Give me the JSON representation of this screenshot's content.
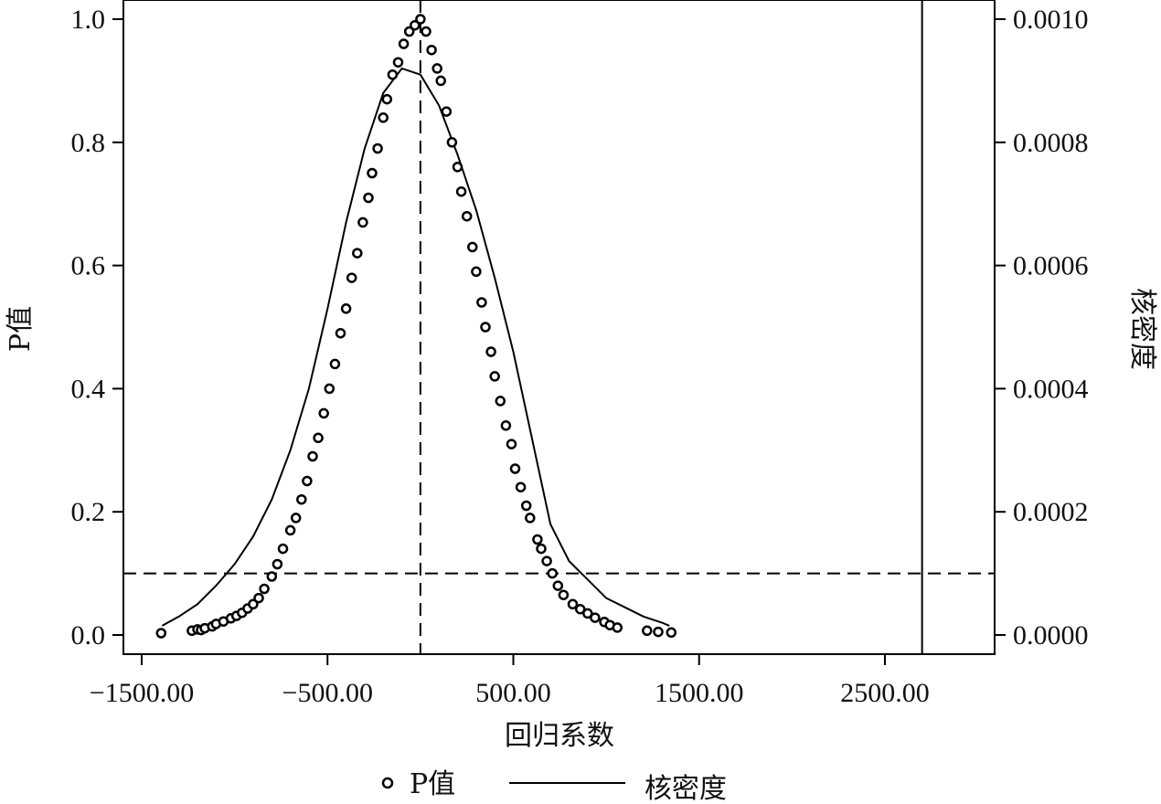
{
  "chart_data": {
    "type": "scatter",
    "xlabel": "回归系数",
    "ylabel_left": "P值",
    "ylabel_right": "核密度",
    "xlim": [
      -1600,
      3000
    ],
    "ylim_left": [
      0,
      1.0
    ],
    "ylim_right": [
      0,
      0.001
    ],
    "x_ticks": [
      -1500,
      -500,
      500,
      1500,
      2500
    ],
    "x_tick_labels": [
      "−1500.00",
      "−500.00",
      "500.00",
      "1500.00",
      "2500.00"
    ],
    "y_left_ticks": [
      0.0,
      0.2,
      0.4,
      0.6,
      0.8,
      1.0
    ],
    "y_left_tick_labels": [
      "0.0",
      "0.2",
      "0.4",
      "0.6",
      "0.8",
      "1.0"
    ],
    "y_right_ticks": [
      0,
      0.0002,
      0.0004,
      0.0006,
      0.0008,
      0.001
    ],
    "y_right_tick_labels": [
      "0.0000",
      "0.0002",
      "0.0004",
      "0.0006",
      "0.0008",
      "0.0010"
    ],
    "reference_lines": {
      "vertical_dashed_x": 0,
      "horizontal_dashed_y": 0.1,
      "vertical_solid_x": 2700
    },
    "grid": false,
    "legend_position": "bottom",
    "legend": {
      "pvalue_label": "P值",
      "density_label": "核密度"
    },
    "series": [
      {
        "name": "P值",
        "kind": "scatter",
        "points": [
          [
            -1395,
            0.003
          ],
          [
            -1230,
            0.007
          ],
          [
            -1200,
            0.009
          ],
          [
            -1180,
            0.008
          ],
          [
            -1160,
            0.011
          ],
          [
            -1120,
            0.014
          ],
          [
            -1100,
            0.018
          ],
          [
            -1060,
            0.022
          ],
          [
            -1020,
            0.027
          ],
          [
            -990,
            0.031
          ],
          [
            -960,
            0.036
          ],
          [
            -930,
            0.043
          ],
          [
            -900,
            0.05
          ],
          [
            -870,
            0.06
          ],
          [
            -840,
            0.075
          ],
          [
            -800,
            0.095
          ],
          [
            -770,
            0.115
          ],
          [
            -740,
            0.14
          ],
          [
            -700,
            0.17
          ],
          [
            -670,
            0.19
          ],
          [
            -640,
            0.22
          ],
          [
            -610,
            0.25
          ],
          [
            -580,
            0.29
          ],
          [
            -550,
            0.32
          ],
          [
            -520,
            0.36
          ],
          [
            -490,
            0.4
          ],
          [
            -460,
            0.44
          ],
          [
            -430,
            0.49
          ],
          [
            -400,
            0.53
          ],
          [
            -370,
            0.58
          ],
          [
            -340,
            0.62
          ],
          [
            -310,
            0.67
          ],
          [
            -280,
            0.71
          ],
          [
            -260,
            0.75
          ],
          [
            -230,
            0.79
          ],
          [
            -200,
            0.84
          ],
          [
            -180,
            0.87
          ],
          [
            -150,
            0.91
          ],
          [
            -120,
            0.93
          ],
          [
            -90,
            0.96
          ],
          [
            -60,
            0.98
          ],
          [
            -30,
            0.99
          ],
          [
            0,
            1.0
          ],
          [
            30,
            0.98
          ],
          [
            60,
            0.95
          ],
          [
            90,
            0.92
          ],
          [
            110,
            0.9
          ],
          [
            140,
            0.85
          ],
          [
            170,
            0.8
          ],
          [
            200,
            0.76
          ],
          [
            220,
            0.72
          ],
          [
            250,
            0.68
          ],
          [
            280,
            0.63
          ],
          [
            300,
            0.59
          ],
          [
            330,
            0.54
          ],
          [
            350,
            0.5
          ],
          [
            380,
            0.46
          ],
          [
            400,
            0.42
          ],
          [
            430,
            0.38
          ],
          [
            460,
            0.34
          ],
          [
            490,
            0.31
          ],
          [
            510,
            0.27
          ],
          [
            540,
            0.24
          ],
          [
            570,
            0.21
          ],
          [
            590,
            0.19
          ],
          [
            630,
            0.155
          ],
          [
            650,
            0.14
          ],
          [
            680,
            0.12
          ],
          [
            710,
            0.1
          ],
          [
            740,
            0.08
          ],
          [
            770,
            0.065
          ],
          [
            820,
            0.05
          ],
          [
            860,
            0.042
          ],
          [
            900,
            0.035
          ],
          [
            940,
            0.028
          ],
          [
            990,
            0.021
          ],
          [
            1020,
            0.016
          ],
          [
            1060,
            0.012
          ],
          [
            1220,
            0.007
          ],
          [
            1280,
            0.005
          ],
          [
            1350,
            0.004
          ]
        ]
      },
      {
        "name": "核密度",
        "kind": "line",
        "points": [
          [
            -1390,
            1.5e-05
          ],
          [
            -1300,
            3e-05
          ],
          [
            -1200,
            5e-05
          ],
          [
            -1100,
            8e-05
          ],
          [
            -1000,
            0.000115
          ],
          [
            -900,
            0.00016
          ],
          [
            -800,
            0.00022
          ],
          [
            -700,
            0.0003
          ],
          [
            -600,
            0.0004
          ],
          [
            -500,
            0.00053
          ],
          [
            -400,
            0.00067
          ],
          [
            -300,
            0.00079
          ],
          [
            -200,
            0.00088
          ],
          [
            -100,
            0.00092
          ],
          [
            0,
            0.00091
          ],
          [
            100,
            0.00086
          ],
          [
            200,
            0.00078
          ],
          [
            300,
            0.00069
          ],
          [
            400,
            0.00058
          ],
          [
            500,
            0.00046
          ],
          [
            600,
            0.00032
          ],
          [
            700,
            0.00018
          ],
          [
            800,
            0.00012
          ],
          [
            900,
            9e-05
          ],
          [
            1000,
            6e-05
          ],
          [
            1100,
            4.5e-05
          ],
          [
            1200,
            3e-05
          ],
          [
            1300,
            2e-05
          ],
          [
            1340,
            1.5e-05
          ]
        ]
      }
    ]
  }
}
